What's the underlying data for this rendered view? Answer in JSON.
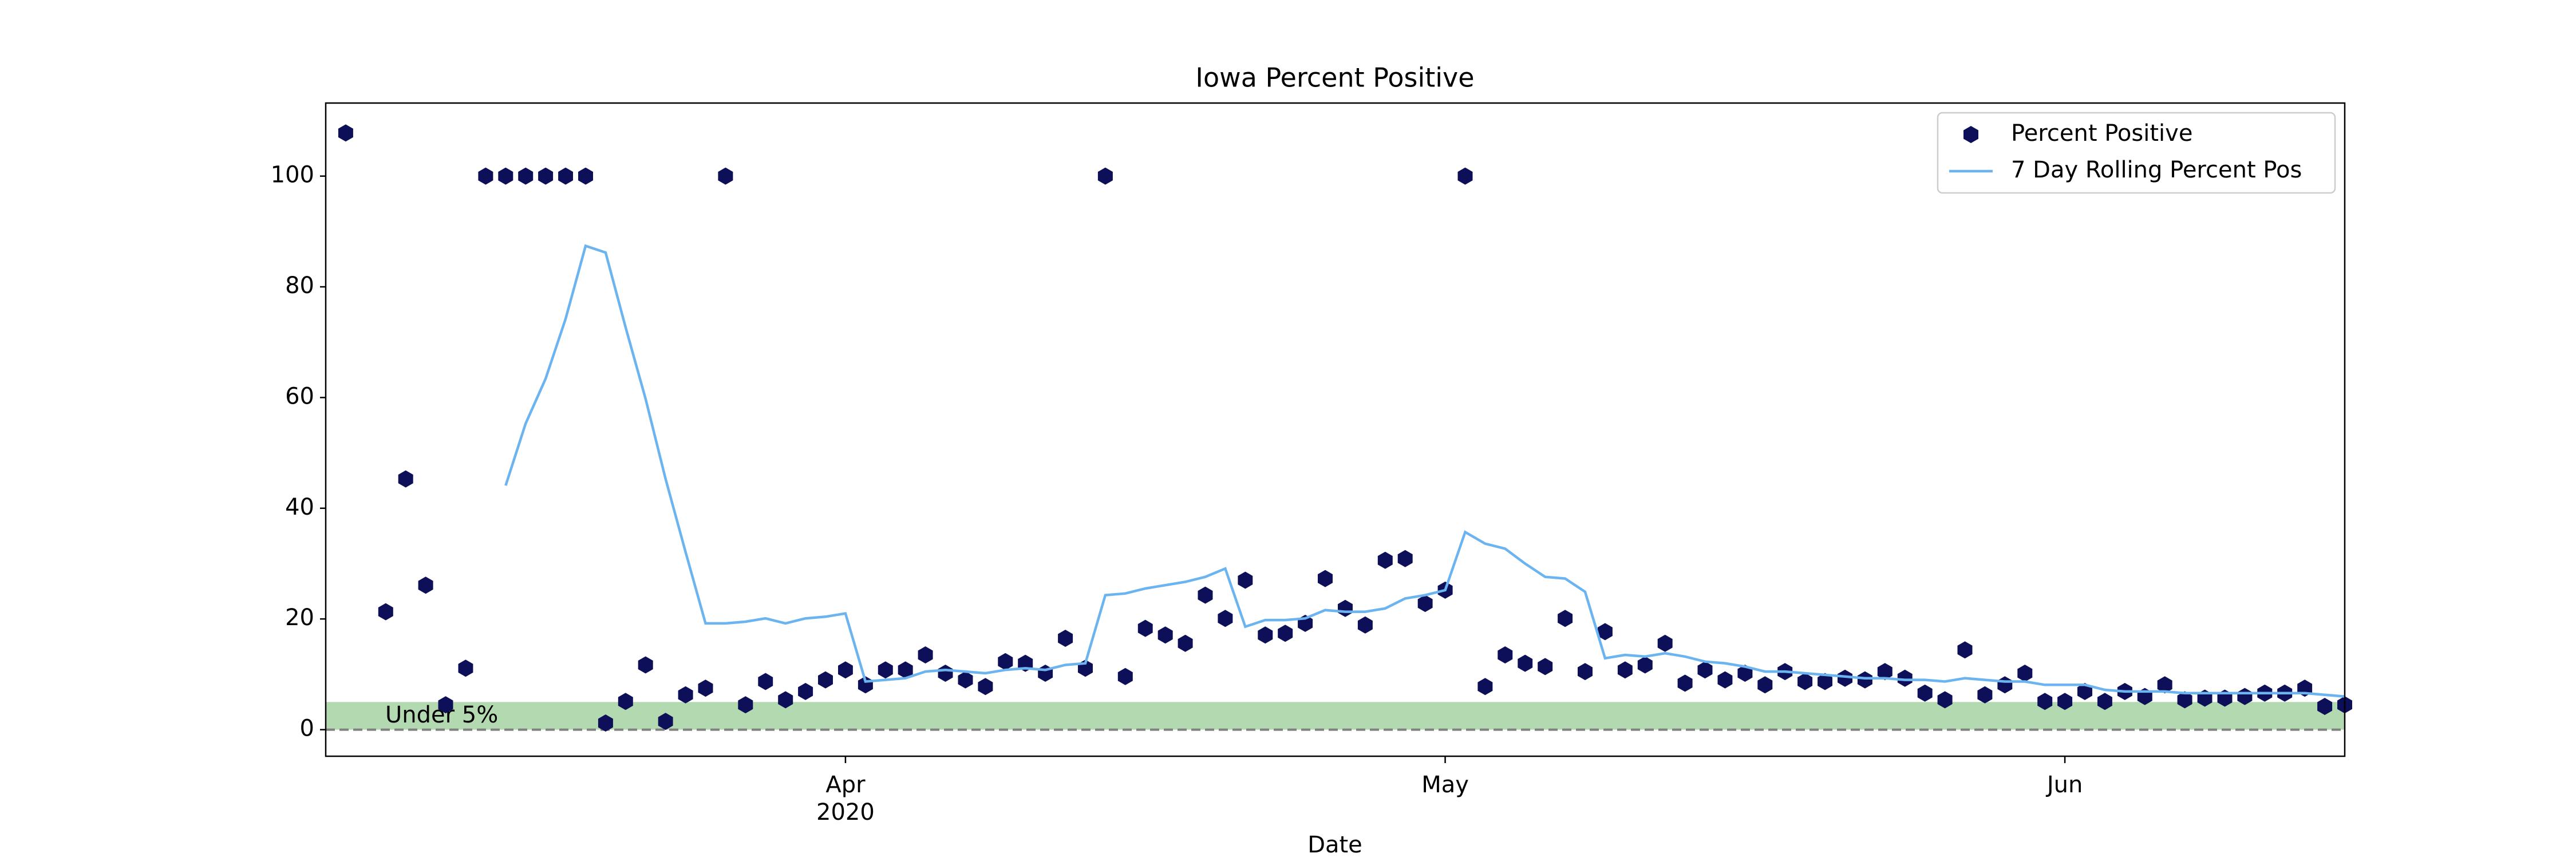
{
  "chart_data": {
    "type": "line",
    "title": "Iowa Percent Positive",
    "x_label": "Date",
    "categories": [
      null,
      null,
      null,
      null,
      null,
      null,
      null,
      null,
      null,
      null,
      null,
      null,
      null,
      null,
      null,
      null,
      null,
      null,
      null,
      null,
      null,
      null,
      null,
      null,
      null,
      "Apr",
      null,
      null,
      null,
      null,
      null,
      null,
      null,
      null,
      null,
      null,
      null,
      null,
      null,
      null,
      null,
      null,
      null,
      null,
      null,
      null,
      null,
      null,
      null,
      null,
      null,
      null,
      null,
      null,
      null,
      "May",
      null,
      null,
      null,
      null,
      null,
      null,
      null,
      null,
      null,
      null,
      null,
      null,
      null,
      null,
      null,
      null,
      null,
      null,
      null,
      null,
      null,
      null,
      null,
      null,
      null,
      null,
      null,
      null,
      null,
      null,
      "Jun",
      null,
      null,
      null,
      null,
      null,
      null,
      null,
      null,
      null,
      null,
      null,
      null,
      null,
      null
    ],
    "x_year": "2020",
    "series": [
      {
        "name": "Percent Positive",
        "color": "#0d0f58",
        "mode": "markers",
        "values": [
          107.8,
          null,
          21.3,
          45.3,
          26.1,
          4.5,
          11.1,
          100,
          100,
          100,
          100,
          100,
          100,
          1.2,
          5.1,
          11.7,
          1.5,
          6.3,
          7.5,
          100,
          4.5,
          8.7,
          5.4,
          6.9,
          9.0,
          10.8,
          8.1,
          10.8,
          10.8,
          13.5,
          10.2,
          9.0,
          7.8,
          12.3,
          12.0,
          10.2,
          16.5,
          11.1,
          100,
          9.6,
          18.3,
          17.1,
          15.6,
          24.3,
          20.1,
          27.0,
          17.1,
          17.4,
          19.2,
          27.3,
          21.9,
          18.9,
          30.6,
          30.9,
          22.8,
          25.2,
          100,
          7.8,
          13.5,
          12.0,
          11.4,
          20.1,
          10.5,
          17.7,
          10.8,
          11.7,
          15.6,
          8.4,
          10.8,
          9.0,
          10.2,
          8.1,
          10.5,
          8.7,
          8.7,
          9.3,
          9.0,
          10.5,
          9.3,
          6.6,
          5.4,
          14.4,
          6.3,
          8.1,
          10.2,
          5.1,
          5.1,
          6.9,
          5.1,
          6.9,
          6.0,
          8.1,
          5.4,
          5.7,
          5.7,
          6.0,
          6.6,
          6.6,
          7.5,
          4.2,
          4.5
        ]
      },
      {
        "name": "7 Day Rolling Percent Pos",
        "color": "#6cb4f0",
        "mode": "line",
        "values": [
          null,
          null,
          null,
          null,
          null,
          null,
          null,
          null,
          44.1,
          55.3,
          63.4,
          74.2,
          87.4,
          86.2,
          72.7,
          59.8,
          45.3,
          32.1,
          19.2,
          19.2,
          19.5,
          20.1,
          19.2,
          20.1,
          20.4,
          21.0,
          8.7,
          9.0,
          9.3,
          10.5,
          10.8,
          10.5,
          10.2,
          10.8,
          11.1,
          10.8,
          11.7,
          12.0,
          24.3,
          24.6,
          25.5,
          26.1,
          26.7,
          27.6,
          29.1,
          18.6,
          19.8,
          19.8,
          20.1,
          21.6,
          21.3,
          21.3,
          21.9,
          23.7,
          24.3,
          25.2,
          35.7,
          33.6,
          32.7,
          30.0,
          27.6,
          27.3,
          24.9,
          12.9,
          13.5,
          13.2,
          13.8,
          13.2,
          12.3,
          12.0,
          11.4,
          10.5,
          10.5,
          10.2,
          9.9,
          9.6,
          9.3,
          9.3,
          9.0,
          9.0,
          8.7,
          9.3,
          9.0,
          8.7,
          8.7,
          8.1,
          8.1,
          8.1,
          7.2,
          6.9,
          6.9,
          6.9,
          6.6,
          6.6,
          6.6,
          6.6,
          6.6,
          6.6,
          6.6,
          6.3,
          6.0
        ]
      }
    ],
    "band": {
      "range": [
        0,
        5
      ],
      "label": "Under 5%",
      "color": "#b3d9b0"
    },
    "reference_line": 0,
    "ylim": [
      -4.8,
      113.2
    ],
    "yticks": [
      0,
      20,
      40,
      60,
      80,
      100
    ],
    "legend": "upper right"
  }
}
